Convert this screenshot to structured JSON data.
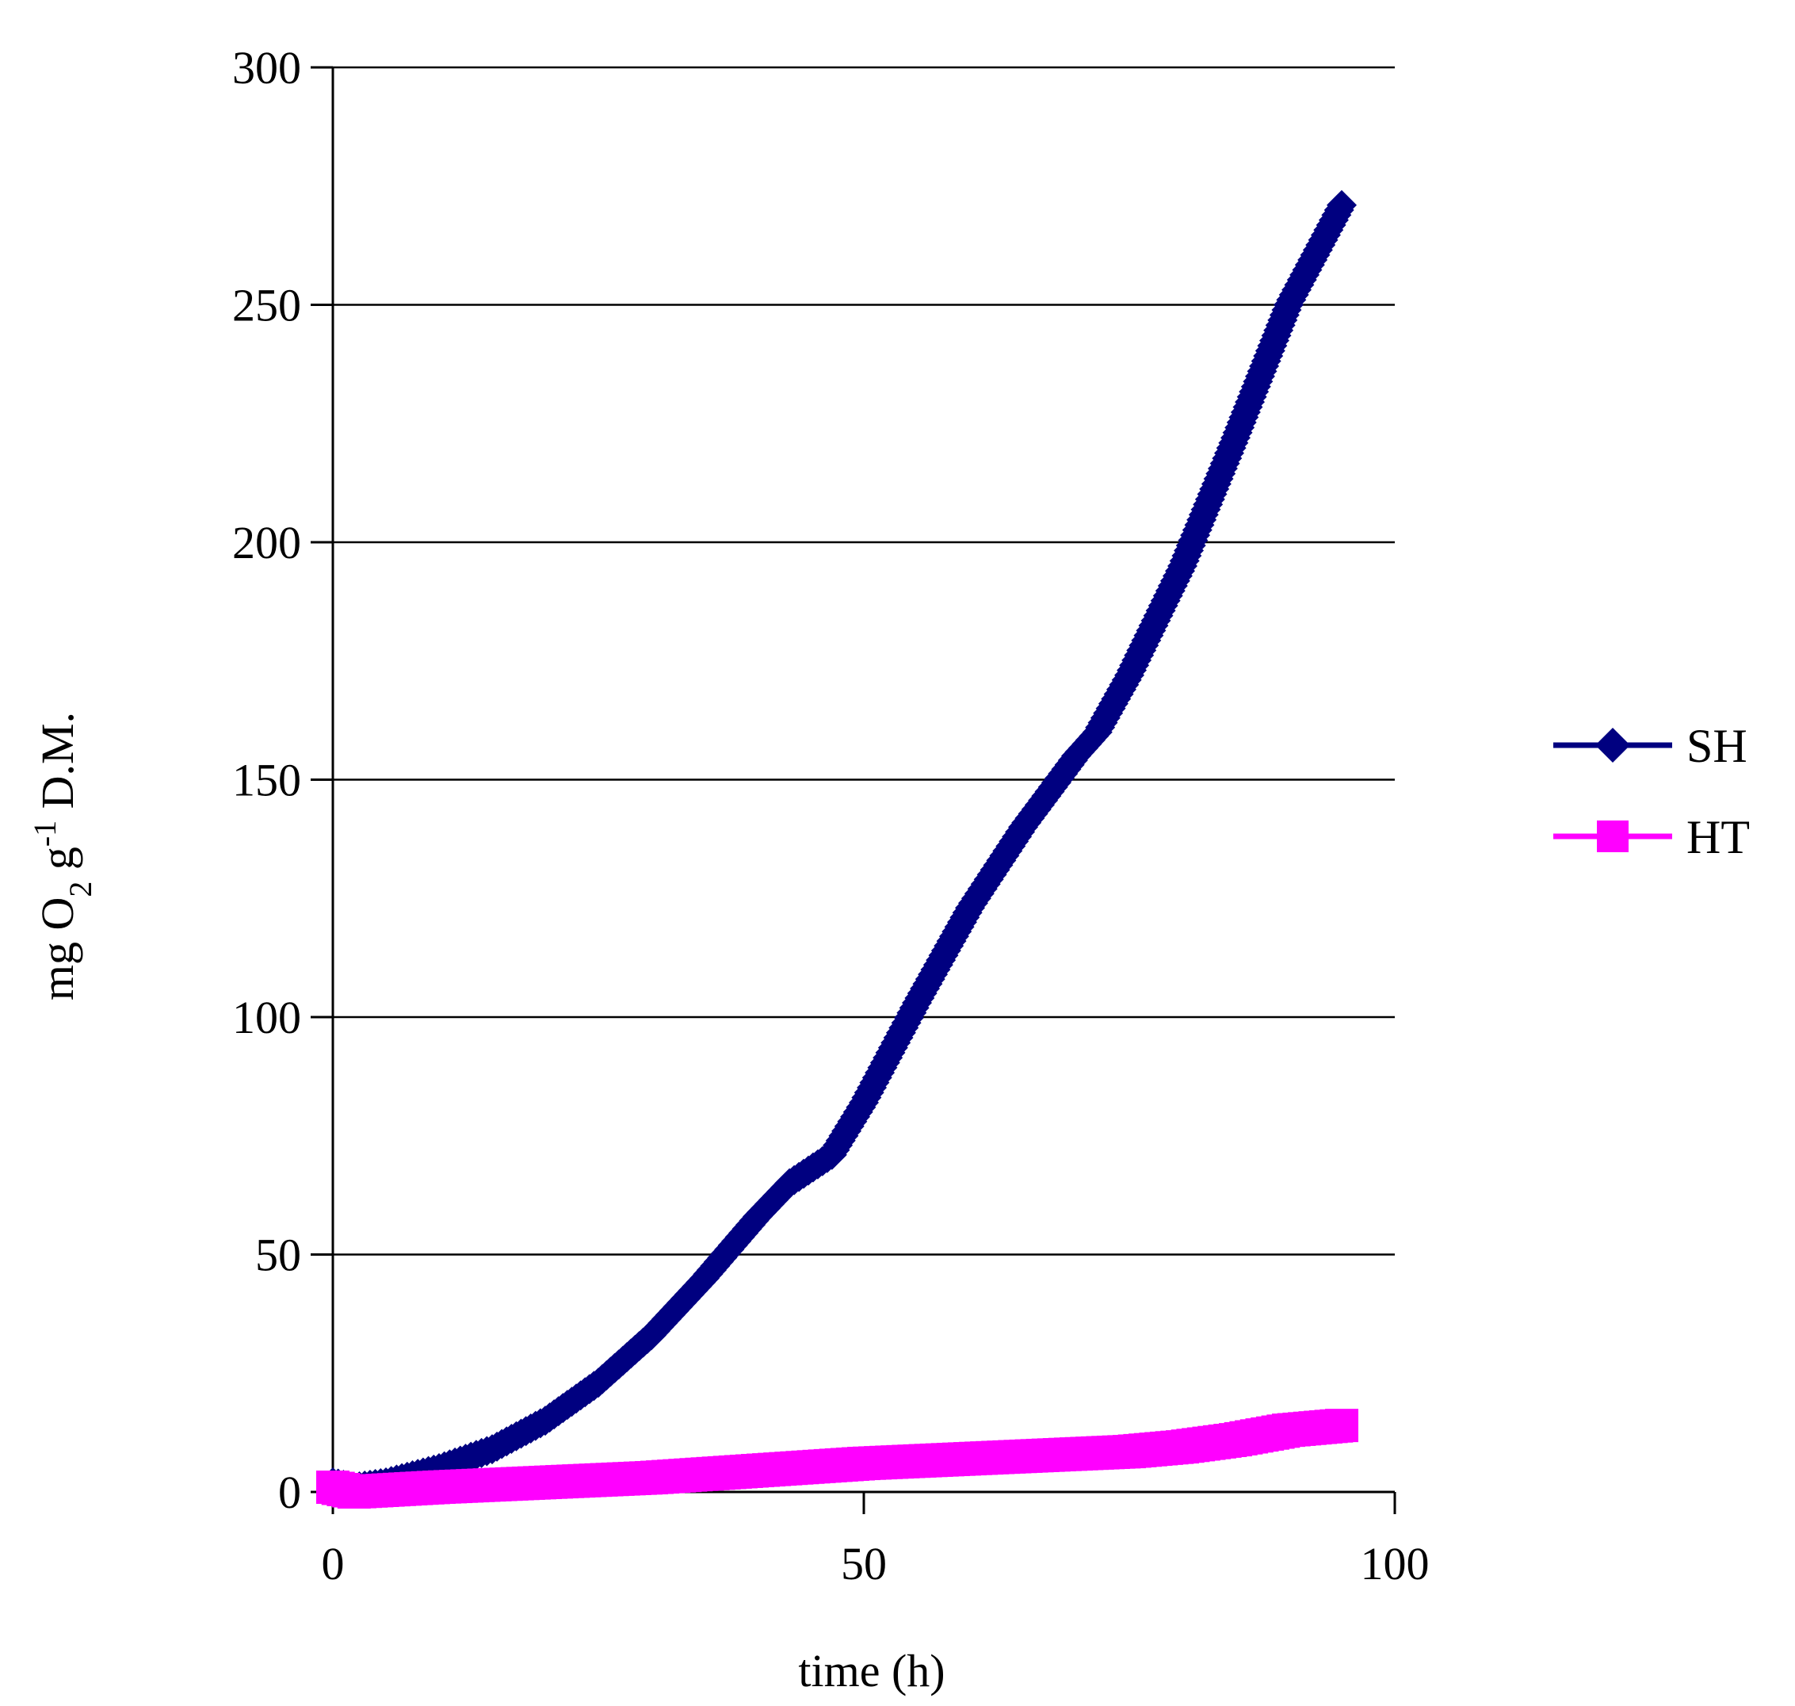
{
  "chart_data": {
    "type": "line",
    "title": "",
    "xlabel": "time (h)",
    "ylabel_parts": {
      "pre": "mg O",
      "sub": "2",
      "mid": " g",
      "sup": "-1",
      "post": " D.M."
    },
    "xlim": [
      0,
      100
    ],
    "ylim": [
      0,
      300
    ],
    "x_ticks": [
      0,
      50,
      100
    ],
    "y_ticks": [
      0,
      50,
      100,
      150,
      200,
      250,
      300
    ],
    "x_tick_labels": [
      "0",
      "50",
      "100"
    ],
    "y_tick_labels": [
      "0",
      "50",
      "100",
      "150",
      "200",
      "250",
      "300"
    ],
    "grid": "horizontal",
    "legend_position": "right",
    "series": [
      {
        "name": "SH",
        "color": "#000080",
        "marker": "diamond",
        "x": [
          0,
          2,
          5,
          10,
          15,
          20,
          25,
          30,
          35,
          40,
          43,
          47,
          50,
          55,
          60,
          65,
          70,
          72,
          75,
          80,
          85,
          90,
          95
        ],
        "y": [
          2,
          1,
          2,
          5,
          9,
          15,
          23,
          33,
          45,
          58,
          65,
          71,
          82,
          103,
          123,
          140,
          155,
          160,
          172,
          195,
          222,
          250,
          271
        ]
      },
      {
        "name": "HT",
        "color": "#ff00ff",
        "marker": "square",
        "x": [
          0,
          2,
          10,
          20,
          30,
          40,
          50,
          60,
          70,
          75,
          80,
          85,
          90,
          95
        ],
        "y": [
          1,
          0,
          1,
          2,
          3,
          4.5,
          6,
          7,
          8,
          8.5,
          9.5,
          11,
          13,
          14
        ]
      }
    ]
  }
}
